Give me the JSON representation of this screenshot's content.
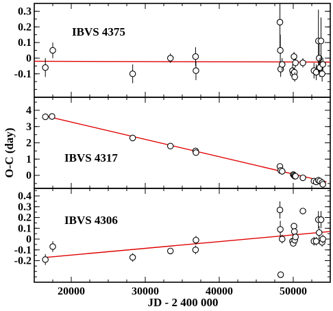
{
  "chart_data": {
    "type": "scatter",
    "xlabel": "JD - 2 400 000",
    "ylabel": "O-C (day)",
    "xlim": [
      15000,
      55000
    ],
    "xticks": [
      20000,
      30000,
      40000,
      50000
    ],
    "xtick_labels": [
      "20000",
      "30000",
      "40000",
      "50000"
    ],
    "fit_color": "#e00000",
    "panels": [
      {
        "label": "IBVS 4375",
        "ylim": [
          -0.25,
          0.35
        ],
        "yticks": [
          -0.1,
          0,
          0.1,
          0.2,
          0.3
        ],
        "ytick_labels": [
          "-0.1",
          "0",
          "0.1",
          "0.2",
          "0.3"
        ],
        "points": [
          {
            "x": 16500,
            "y": -0.06,
            "err": 0.06
          },
          {
            "x": 17500,
            "y": 0.05,
            "err": 0.05
          },
          {
            "x": 28300,
            "y": -0.1,
            "err": 0.06
          },
          {
            "x": 33400,
            "y": 0.0,
            "err": 0.03
          },
          {
            "x": 36800,
            "y": 0.01,
            "err": 0.06
          },
          {
            "x": 36850,
            "y": -0.08,
            "err": 0.06
          },
          {
            "x": 48200,
            "y": 0.23,
            "err": 0.2
          },
          {
            "x": 48250,
            "y": 0.05,
            "err": 0.1
          },
          {
            "x": 48300,
            "y": -0.07,
            "err": 0.05
          },
          {
            "x": 48500,
            "y": -0.04,
            "err": 0.04
          },
          {
            "x": 49900,
            "y": -0.08,
            "err": 0.04
          },
          {
            "x": 50000,
            "y": -0.1,
            "err": 0.04
          },
          {
            "x": 50100,
            "y": 0.01,
            "err": 0.03
          },
          {
            "x": 50150,
            "y": -0.09,
            "err": 0.03
          },
          {
            "x": 50200,
            "y": -0.12,
            "err": 0.03
          },
          {
            "x": 50300,
            "y": -0.03,
            "err": 0.03
          },
          {
            "x": 51300,
            "y": -0.03,
            "err": 0.03
          },
          {
            "x": 52800,
            "y": -0.08,
            "err": 0.05
          },
          {
            "x": 53100,
            "y": -0.09,
            "err": 0.05
          },
          {
            "x": 53400,
            "y": 0.11,
            "err": 0.2
          },
          {
            "x": 53500,
            "y": 0.0,
            "err": 0.1
          },
          {
            "x": 53600,
            "y": -0.06,
            "err": 0.06
          },
          {
            "x": 53750,
            "y": 0.11,
            "err": 0.15
          },
          {
            "x": 53900,
            "y": -0.1,
            "err": 0.05
          },
          {
            "x": 54000,
            "y": -0.04,
            "err": 0.04
          }
        ],
        "fit": [
          [
            15000,
            -0.02
          ],
          [
            55000,
            -0.025
          ]
        ]
      },
      {
        "label": "IBVS 4317",
        "ylim": [
          -0.8,
          4.8
        ],
        "yticks": [
          0,
          1,
          2,
          3,
          4
        ],
        "ytick_labels": [
          "0",
          "1",
          "2",
          "3",
          "4"
        ],
        "points": [
          {
            "x": 16500,
            "y": 3.6,
            "err": 0
          },
          {
            "x": 17400,
            "y": 3.62,
            "err": 0
          },
          {
            "x": 28300,
            "y": 2.3,
            "err": 0
          },
          {
            "x": 33400,
            "y": 1.8,
            "err": 0
          },
          {
            "x": 36800,
            "y": 1.5,
            "err": 0
          },
          {
            "x": 36850,
            "y": 1.4,
            "err": 0
          },
          {
            "x": 48200,
            "y": 0.55,
            "err": 0
          },
          {
            "x": 48300,
            "y": 0.3,
            "err": 0
          },
          {
            "x": 48500,
            "y": 0.25,
            "err": 0
          },
          {
            "x": 50000,
            "y": 0.05,
            "err": 0
          },
          {
            "x": 50100,
            "y": 0.0,
            "err": 0
          },
          {
            "x": 50200,
            "y": -0.05,
            "err": 0
          },
          {
            "x": 50300,
            "y": -0.05,
            "err": 0
          },
          {
            "x": 51300,
            "y": -0.15,
            "err": 0
          },
          {
            "x": 52800,
            "y": -0.35,
            "err": 0
          },
          {
            "x": 53100,
            "y": -0.4,
            "err": 0
          },
          {
            "x": 53400,
            "y": -0.3,
            "err": 0
          },
          {
            "x": 53600,
            "y": -0.35,
            "err": 0
          },
          {
            "x": 53900,
            "y": -0.45,
            "err": 0
          },
          {
            "x": 54000,
            "y": -0.55,
            "err": 0
          }
        ],
        "fit": [
          [
            16500,
            3.65
          ],
          [
            54500,
            -0.4
          ]
        ]
      },
      {
        "label": "IBVS 4306",
        "ylim": [
          -0.4,
          0.47
        ],
        "yticks": [
          -0.2,
          -0.1,
          0,
          0.1,
          0.2,
          0.3,
          0.4
        ],
        "ytick_labels": [
          "-0.2",
          "-0.1",
          "0",
          "0.1",
          "0.2",
          "0.3",
          "0.4"
        ],
        "points": [
          {
            "x": 16500,
            "y": -0.19,
            "err": 0.05
          },
          {
            "x": 17500,
            "y": -0.07,
            "err": 0.05
          },
          {
            "x": 28300,
            "y": -0.17,
            "err": 0.04
          },
          {
            "x": 33400,
            "y": -0.11,
            "err": 0.02
          },
          {
            "x": 36800,
            "y": -0.1,
            "err": 0.04
          },
          {
            "x": 36850,
            "y": -0.01,
            "err": 0.04
          },
          {
            "x": 48200,
            "y": 0.27,
            "err": 0.08
          },
          {
            "x": 48250,
            "y": 0.09,
            "err": 0.08
          },
          {
            "x": 48300,
            "y": -0.33,
            "err": 0
          },
          {
            "x": 48500,
            "y": 0.0,
            "err": 0.04
          },
          {
            "x": 49900,
            "y": -0.02,
            "err": 0.03
          },
          {
            "x": 50000,
            "y": -0.04,
            "err": 0.03
          },
          {
            "x": 50100,
            "y": 0.12,
            "err": 0.03
          },
          {
            "x": 50150,
            "y": 0.07,
            "err": 0.03
          },
          {
            "x": 50200,
            "y": -0.01,
            "err": 0.03
          },
          {
            "x": 50300,
            "y": 0.02,
            "err": 0.03
          },
          {
            "x": 51300,
            "y": 0.26,
            "err": 0
          },
          {
            "x": 52800,
            "y": -0.02,
            "err": 0.04
          },
          {
            "x": 53100,
            "y": -0.02,
            "err": 0.04
          },
          {
            "x": 53400,
            "y": 0.18,
            "err": 0.08
          },
          {
            "x": 53500,
            "y": 0.06,
            "err": 0.06
          },
          {
            "x": 53750,
            "y": 0.18,
            "err": 0.08
          },
          {
            "x": 53900,
            "y": -0.03,
            "err": 0.04
          },
          {
            "x": 54000,
            "y": 0.0,
            "err": 0.04
          }
        ],
        "fit": [
          [
            16500,
            -0.17
          ],
          [
            55000,
            0.07
          ]
        ]
      }
    ]
  }
}
